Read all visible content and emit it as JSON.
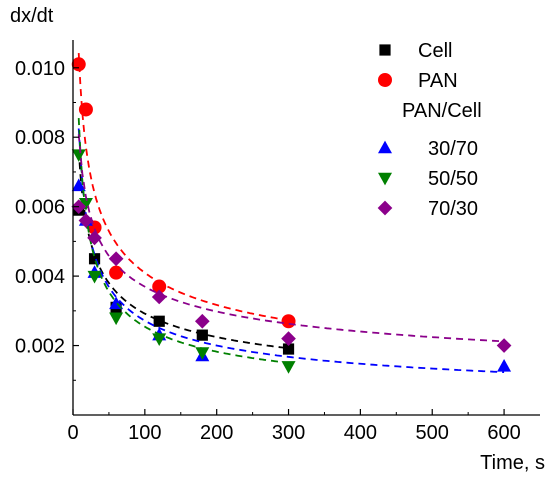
{
  "chart_data": {
    "type": "scatter",
    "title": "",
    "xlabel": "Time, s",
    "ylabel": "dx/dt",
    "xlim": [
      0,
      650
    ],
    "ylim": [
      0.0,
      0.0108
    ],
    "x_ticks": [
      0,
      100,
      200,
      300,
      400,
      500,
      600
    ],
    "y_ticks": [
      0.002,
      0.004,
      0.006,
      0.008,
      0.01
    ],
    "y_tick_labels": [
      "0.002",
      "0.004",
      "0.006",
      "0.008",
      "0.010"
    ],
    "grid": false,
    "legend_position": "top-right",
    "legend_group_title": "PAN/Cell",
    "series": [
      {
        "name": "Cell",
        "marker": "square",
        "color": "#000000",
        "x": [
          8,
          30,
          60,
          120,
          180,
          300
        ],
        "y": [
          0.0059,
          0.0045,
          0.0031,
          0.0027,
          0.0023,
          0.0019
        ],
        "fit": {
          "a": 0.0168,
          "b": -0.38
        }
      },
      {
        "name": "PAN",
        "marker": "circle",
        "color": "#ff0000",
        "x": [
          8,
          18,
          30,
          60,
          120,
          300
        ],
        "y": [
          0.0101,
          0.0088,
          0.0054,
          0.0041,
          0.0037,
          0.0027
        ],
        "fit": {
          "a": 0.0225,
          "b": -0.37
        }
      },
      {
        "name": "30/70",
        "marker": "triangle-up",
        "color": "#0000ff",
        "x": [
          8,
          18,
          30,
          60,
          120,
          180,
          600
        ],
        "y": [
          0.0066,
          0.0056,
          0.0041,
          0.0032,
          0.0023,
          0.0017,
          0.0014
        ],
        "fit": {
          "a": 0.0206,
          "b": -0.44
        }
      },
      {
        "name": "50/50",
        "marker": "triangle-down",
        "color": "#008000",
        "x": [
          8,
          18,
          30,
          60,
          120,
          180,
          300
        ],
        "y": [
          0.0075,
          0.0061,
          0.004,
          0.0028,
          0.0022,
          0.0018,
          0.0014
        ],
        "fit": {
          "a": 0.0232,
          "b": -0.48
        }
      },
      {
        "name": "70/30",
        "marker": "diamond",
        "color": "#8b008b",
        "x": [
          8,
          18,
          30,
          60,
          120,
          180,
          300,
          600
        ],
        "y": [
          0.006,
          0.0056,
          0.0051,
          0.0045,
          0.0034,
          0.0027,
          0.0022,
          0.002
        ],
        "fit": {
          "a": 0.0154,
          "b": -0.31
        }
      }
    ]
  }
}
